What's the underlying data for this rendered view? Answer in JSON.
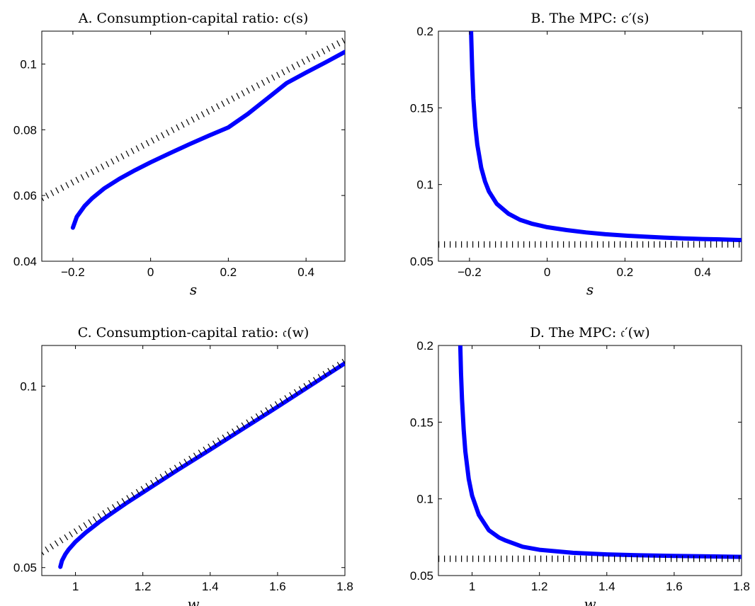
{
  "chart_data": [
    {
      "type": "line",
      "title": "A. Consumption-capital ratio: c(s)",
      "xlabel": "s",
      "ylabel": "",
      "xlim": [
        -0.28,
        0.5
      ],
      "ylim": [
        0.04,
        0.11
      ],
      "xticks": [
        -0.2,
        0,
        0.2,
        0.4
      ],
      "yticks": [
        0.04,
        0.06,
        0.08,
        0.1
      ],
      "xtick_labels": [
        "−0.2",
        "0",
        "0.2",
        "0.4"
      ],
      "ytick_labels": [
        "0.04",
        "0.06",
        "0.08",
        "0.1"
      ],
      "series": [
        {
          "style": "solid",
          "color": "#0000ff",
          "x": [
            -0.2,
            -0.19,
            -0.17,
            -0.15,
            -0.12,
            -0.08,
            -0.04,
            0.0,
            0.05,
            0.1,
            0.15,
            0.2,
            0.25,
            0.3,
            0.35,
            0.4,
            0.45,
            0.5
          ],
          "y": [
            0.0502,
            0.0535,
            0.0568,
            0.0592,
            0.0621,
            0.0651,
            0.0677,
            0.0701,
            0.0729,
            0.0756,
            0.0782,
            0.0807,
            0.0848,
            0.0895,
            0.0942,
            0.0974,
            0.1005,
            0.1037
          ]
        },
        {
          "style": "dotted",
          "color": "#000000",
          "x": [
            -0.28,
            0.5
          ],
          "y": [
            0.0591,
            0.1073
          ]
        }
      ]
    },
    {
      "type": "line",
      "title": "B. The MPC: c′(s)",
      "xlabel": "s",
      "ylabel": "",
      "xlim": [
        -0.28,
        0.5
      ],
      "ylim": [
        0.05,
        0.2
      ],
      "xticks": [
        -0.2,
        0,
        0.2,
        0.4
      ],
      "yticks": [
        0.05,
        0.1,
        0.15,
        0.2
      ],
      "xtick_labels": [
        "−0.2",
        "0",
        "0.2",
        "0.4"
      ],
      "ytick_labels": [
        "0.05",
        "0.1",
        "0.15",
        "0.2"
      ],
      "series": [
        {
          "style": "solid",
          "color": "#0000ff",
          "x": [
            -0.196,
            -0.193,
            -0.19,
            -0.185,
            -0.18,
            -0.17,
            -0.16,
            -0.15,
            -0.13,
            -0.1,
            -0.07,
            -0.04,
            0.0,
            0.05,
            0.1,
            0.15,
            0.2,
            0.25,
            0.3,
            0.35,
            0.4,
            0.45,
            0.5
          ],
          "y": [
            0.2,
            0.175,
            0.156,
            0.138,
            0.126,
            0.111,
            0.102,
            0.0955,
            0.0875,
            0.081,
            0.077,
            0.0745,
            0.0722,
            0.0703,
            0.0688,
            0.0676,
            0.0667,
            0.066,
            0.0654,
            0.0649,
            0.0645,
            0.0642,
            0.0638
          ]
        },
        {
          "style": "dotted",
          "color": "#000000",
          "x": [
            -0.28,
            0.5
          ],
          "y": [
            0.061,
            0.061
          ]
        }
      ]
    },
    {
      "type": "line",
      "title": "C. Consumption-capital ratio: 𝔠(w)",
      "xlabel": "w",
      "ylabel": "",
      "xlim": [
        0.9,
        1.8
      ],
      "ylim": [
        0.0478,
        0.1112
      ],
      "xticks": [
        1,
        1.2,
        1.4,
        1.6,
        1.8
      ],
      "yticks": [
        0.05,
        0.1
      ],
      "xtick_labels": [
        "1",
        "1.2",
        "1.4",
        "1.6",
        "1.8"
      ],
      "ytick_labels": [
        "0.05",
        "0.1"
      ],
      "series": [
        {
          "style": "solid",
          "color": "#0000ff",
          "x": [
            0.955,
            0.96,
            0.97,
            0.98,
            1.0,
            1.03,
            1.07,
            1.1,
            1.15,
            1.2,
            1.3,
            1.4,
            1.5,
            1.6,
            1.7,
            1.8
          ],
          "y": [
            0.0502,
            0.0519,
            0.0537,
            0.055,
            0.0571,
            0.0596,
            0.0625,
            0.0645,
            0.0677,
            0.0707,
            0.0767,
            0.0825,
            0.0884,
            0.0943,
            0.1003,
            0.1063
          ]
        },
        {
          "style": "dotted",
          "color": "#000000",
          "x": [
            0.9,
            1.8
          ],
          "y": [
            0.0541,
            0.1069
          ]
        }
      ]
    },
    {
      "type": "line",
      "title": "D. The MPC: 𝔠′(w)",
      "xlabel": "w",
      "ylabel": "",
      "xlim": [
        0.9,
        1.8
      ],
      "ylim": [
        0.05,
        0.2
      ],
      "xticks": [
        1,
        1.2,
        1.4,
        1.6,
        1.8
      ],
      "yticks": [
        0.05,
        0.1,
        0.15,
        0.2
      ],
      "xtick_labels": [
        "1",
        "1.2",
        "1.4",
        "1.6",
        "1.8"
      ],
      "ytick_labels": [
        "0.05",
        "0.1",
        "0.15",
        "0.2"
      ],
      "series": [
        {
          "style": "solid",
          "color": "#0000ff",
          "x": [
            0.965,
            0.967,
            0.97,
            0.975,
            0.98,
            0.99,
            1.0,
            1.02,
            1.05,
            1.08,
            1.1,
            1.15,
            1.2,
            1.3,
            1.4,
            1.5,
            1.6,
            1.7,
            1.8
          ],
          "y": [
            0.2,
            0.182,
            0.165,
            0.145,
            0.131,
            0.113,
            0.102,
            0.0895,
            0.0795,
            0.0748,
            0.0728,
            0.0688,
            0.0668,
            0.0648,
            0.0638,
            0.0632,
            0.0628,
            0.0625,
            0.0622
          ]
        },
        {
          "style": "dotted",
          "color": "#000000",
          "x": [
            0.9,
            1.8
          ],
          "y": [
            0.061,
            0.061
          ]
        }
      ]
    }
  ]
}
